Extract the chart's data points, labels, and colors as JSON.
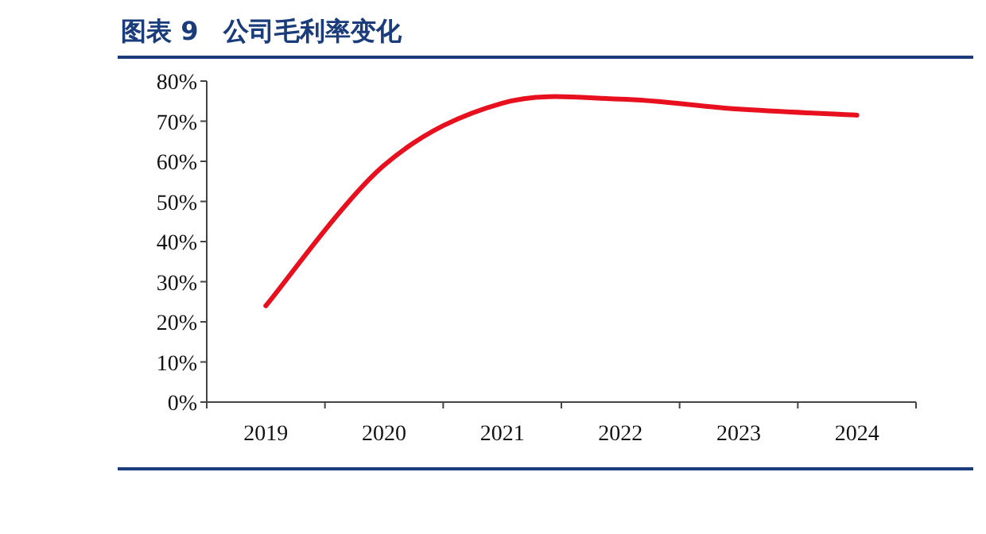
{
  "chart_data": {
    "type": "line",
    "title": "图表 9　公司毛利率变化",
    "categories": [
      "2019",
      "2020",
      "2021",
      "2022",
      "2023",
      "2024"
    ],
    "series": [
      {
        "color": "#e8101e",
        "values": [
          24,
          59,
          74.5,
          75.5,
          73,
          71.5
        ]
      }
    ],
    "ylim": [
      0,
      80
    ],
    "yticks": [
      {
        "value": 0,
        "label": "0%"
      },
      {
        "value": 10,
        "label": "10%"
      },
      {
        "value": 20,
        "label": "20%"
      },
      {
        "value": 30,
        "label": "30%"
      },
      {
        "value": 40,
        "label": "40%"
      },
      {
        "value": 50,
        "label": "50%"
      },
      {
        "value": 60,
        "label": "60%"
      },
      {
        "value": 70,
        "label": "70%"
      },
      {
        "value": 80,
        "label": "80%"
      }
    ],
    "grid": false,
    "marker": "none",
    "line_style": "solid"
  }
}
